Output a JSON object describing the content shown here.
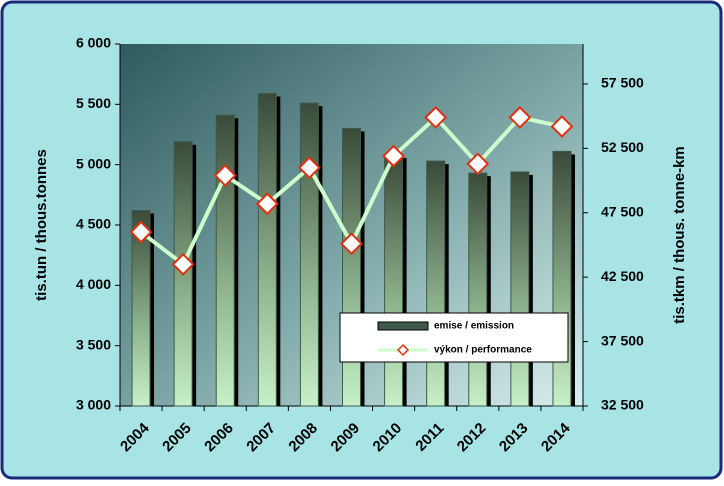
{
  "chart_data": {
    "type": "bar-line",
    "categories": [
      "2004",
      "2005",
      "2006",
      "2007",
      "2008",
      "2009",
      "2010",
      "2011",
      "2012",
      "2013",
      "2014"
    ],
    "y_label": "tis.tun / thous.tonnes",
    "y2_label": "tis.tkm / thous. tonne-km",
    "ylim": [
      3000,
      6000
    ],
    "yticks": [
      {
        "value": 3000,
        "label": "3 000"
      },
      {
        "value": 3500,
        "label": "3 500"
      },
      {
        "value": 4000,
        "label": "4 000"
      },
      {
        "value": 4500,
        "label": "4 500"
      },
      {
        "value": 5000,
        "label": "5 000"
      },
      {
        "value": 5500,
        "label": "5 500"
      },
      {
        "value": 6000,
        "label": "6 000"
      }
    ],
    "y2lim": [
      32500,
      60600
    ],
    "y2ticks": [
      {
        "value": 32500,
        "label": "32 500"
      },
      {
        "value": 37500,
        "label": "37 500"
      },
      {
        "value": 42500,
        "label": "42 500"
      },
      {
        "value": 47500,
        "label": "47 500"
      },
      {
        "value": 52500,
        "label": "52 500"
      },
      {
        "value": 57500,
        "label": "57 500"
      }
    ],
    "legend": "lower-right",
    "series": [
      {
        "name": "emise / emission",
        "type": "bar",
        "color": "#3f5a4a",
        "values": [
          4620,
          5190,
          5410,
          5590,
          5510,
          5300,
          5080,
          5030,
          4930,
          4940,
          5110
        ]
      },
      {
        "name": "výkon / performance",
        "type": "line",
        "axis": "y2",
        "color": "#ccffcc",
        "marker_color": "#e03010",
        "values": [
          46000,
          43500,
          50400,
          48200,
          51000,
          45100,
          51900,
          54900,
          51300,
          54900,
          54200
        ]
      }
    ]
  }
}
